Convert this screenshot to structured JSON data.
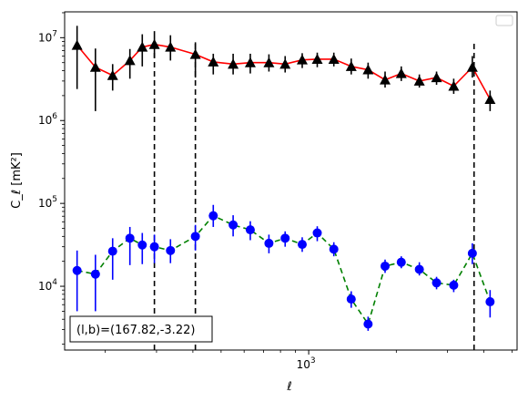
{
  "chart_data": {
    "type": "line",
    "xlabel": "ℓ",
    "ylabel": "C_ℓ [mK²]",
    "xscale": "log",
    "yscale": "log",
    "xlim": [
      145,
      5200
    ],
    "ylim": [
      1700,
      20500000
    ],
    "grid": false,
    "legend": "top-right (empty)",
    "x_tick_labels": [
      {
        "value": 1000,
        "label": "10",
        "sup": "3"
      }
    ],
    "y_tick_labels": [
      {
        "value": 10000,
        "label": "10",
        "sup": "4"
      },
      {
        "value": 100000,
        "label": "10",
        "sup": "5"
      },
      {
        "value": 1000000,
        "label": "10",
        "sup": "6"
      },
      {
        "value": 10000000,
        "label": "10",
        "sup": "7"
      }
    ],
    "vertical_lines": [
      295,
      408,
      3700
    ],
    "annotation": "(l,b)=(167.82,-3.22)",
    "series": [
      {
        "color": "#000000",
        "line_color": "#ff0000",
        "line_style": "solid",
        "marker": "triangle",
        "points": [
          {
            "x": 160,
            "y": 8100000,
            "lo": 2400000,
            "hi": 13900000
          },
          {
            "x": 185,
            "y": 4400000,
            "lo": 1300000,
            "hi": 7400000
          },
          {
            "x": 212,
            "y": 3500000,
            "lo": 2300000,
            "hi": 4800000
          },
          {
            "x": 243,
            "y": 5300000,
            "lo": 3200000,
            "hi": 7300000
          },
          {
            "x": 268,
            "y": 7700000,
            "lo": 4500000,
            "hi": 11000000
          },
          {
            "x": 295,
            "y": 8300000,
            "lo": 5700000,
            "hi": 12000000
          },
          {
            "x": 335,
            "y": 7700000,
            "lo": 5300000,
            "hi": 10700000
          },
          {
            "x": 408,
            "y": 6300000,
            "lo": 3300000,
            "hi": 8800000
          },
          {
            "x": 470,
            "y": 5100000,
            "lo": 3600000,
            "hi": 6400000
          },
          {
            "x": 550,
            "y": 4800000,
            "lo": 3600000,
            "hi": 6400000
          },
          {
            "x": 630,
            "y": 5000000,
            "lo": 3700000,
            "hi": 6400000
          },
          {
            "x": 730,
            "y": 5000000,
            "lo": 3900000,
            "hi": 6300000
          },
          {
            "x": 830,
            "y": 4800000,
            "lo": 3800000,
            "hi": 6000000
          },
          {
            "x": 950,
            "y": 5400000,
            "lo": 4300000,
            "hi": 6500000
          },
          {
            "x": 1070,
            "y": 5500000,
            "lo": 4400000,
            "hi": 6600000
          },
          {
            "x": 1220,
            "y": 5500000,
            "lo": 4500000,
            "hi": 6600000
          },
          {
            "x": 1400,
            "y": 4500000,
            "lo": 3600000,
            "hi": 5600000
          },
          {
            "x": 1600,
            "y": 4100000,
            "lo": 3200000,
            "hi": 5000000
          },
          {
            "x": 1830,
            "y": 3100000,
            "lo": 2500000,
            "hi": 3900000
          },
          {
            "x": 2080,
            "y": 3700000,
            "lo": 3000000,
            "hi": 4500000
          },
          {
            "x": 2400,
            "y": 3000000,
            "lo": 2500000,
            "hi": 3600000
          },
          {
            "x": 2750,
            "y": 3300000,
            "lo": 2700000,
            "hi": 3900000
          },
          {
            "x": 3150,
            "y": 2600000,
            "lo": 2100000,
            "hi": 3200000
          },
          {
            "x": 3650,
            "y": 4400000,
            "lo": 3300000,
            "hi": 6000000
          },
          {
            "x": 4200,
            "y": 1800000,
            "lo": 1300000,
            "hi": 2300000
          }
        ]
      },
      {
        "color": "#0000ff",
        "line_color": "#008000",
        "line_style": "dashed",
        "marker": "circle",
        "points": [
          {
            "x": 160,
            "y": 15500,
            "lo": 5000,
            "hi": 27000
          },
          {
            "x": 185,
            "y": 14000,
            "lo": 5000,
            "hi": 24000
          },
          {
            "x": 212,
            "y": 26500,
            "lo": 12000,
            "hi": 38000
          },
          {
            "x": 243,
            "y": 38000,
            "lo": 18000,
            "hi": 52000
          },
          {
            "x": 268,
            "y": 31500,
            "lo": 18500,
            "hi": 44000
          },
          {
            "x": 295,
            "y": 30000,
            "lo": 19000,
            "hi": 42000
          },
          {
            "x": 335,
            "y": 27000,
            "lo": 19000,
            "hi": 37000
          },
          {
            "x": 408,
            "y": 40000,
            "lo": 27000,
            "hi": 55000
          },
          {
            "x": 470,
            "y": 71000,
            "lo": 52000,
            "hi": 96000
          },
          {
            "x": 550,
            "y": 55000,
            "lo": 40000,
            "hi": 72000
          },
          {
            "x": 630,
            "y": 48000,
            "lo": 36000,
            "hi": 61000
          },
          {
            "x": 730,
            "y": 33000,
            "lo": 25000,
            "hi": 42000
          },
          {
            "x": 830,
            "y": 38000,
            "lo": 30000,
            "hi": 46000
          },
          {
            "x": 950,
            "y": 32000,
            "lo": 26000,
            "hi": 39000
          },
          {
            "x": 1070,
            "y": 44000,
            "lo": 35000,
            "hi": 53000
          },
          {
            "x": 1220,
            "y": 28000,
            "lo": 23000,
            "hi": 34000
          },
          {
            "x": 1400,
            "y": 7000,
            "lo": 5500,
            "hi": 8700
          },
          {
            "x": 1600,
            "y": 3500,
            "lo": 2900,
            "hi": 4300
          },
          {
            "x": 1830,
            "y": 17500,
            "lo": 14500,
            "hi": 21000
          },
          {
            "x": 2080,
            "y": 19500,
            "lo": 16500,
            "hi": 23000
          },
          {
            "x": 2400,
            "y": 16000,
            "lo": 13500,
            "hi": 19500
          },
          {
            "x": 2750,
            "y": 11000,
            "lo": 9200,
            "hi": 13000
          },
          {
            "x": 3150,
            "y": 10300,
            "lo": 8500,
            "hi": 12000
          },
          {
            "x": 3650,
            "y": 25000,
            "lo": 18500,
            "hi": 33000
          },
          {
            "x": 4200,
            "y": 6500,
            "lo": 4200,
            "hi": 9000
          }
        ]
      }
    ]
  }
}
